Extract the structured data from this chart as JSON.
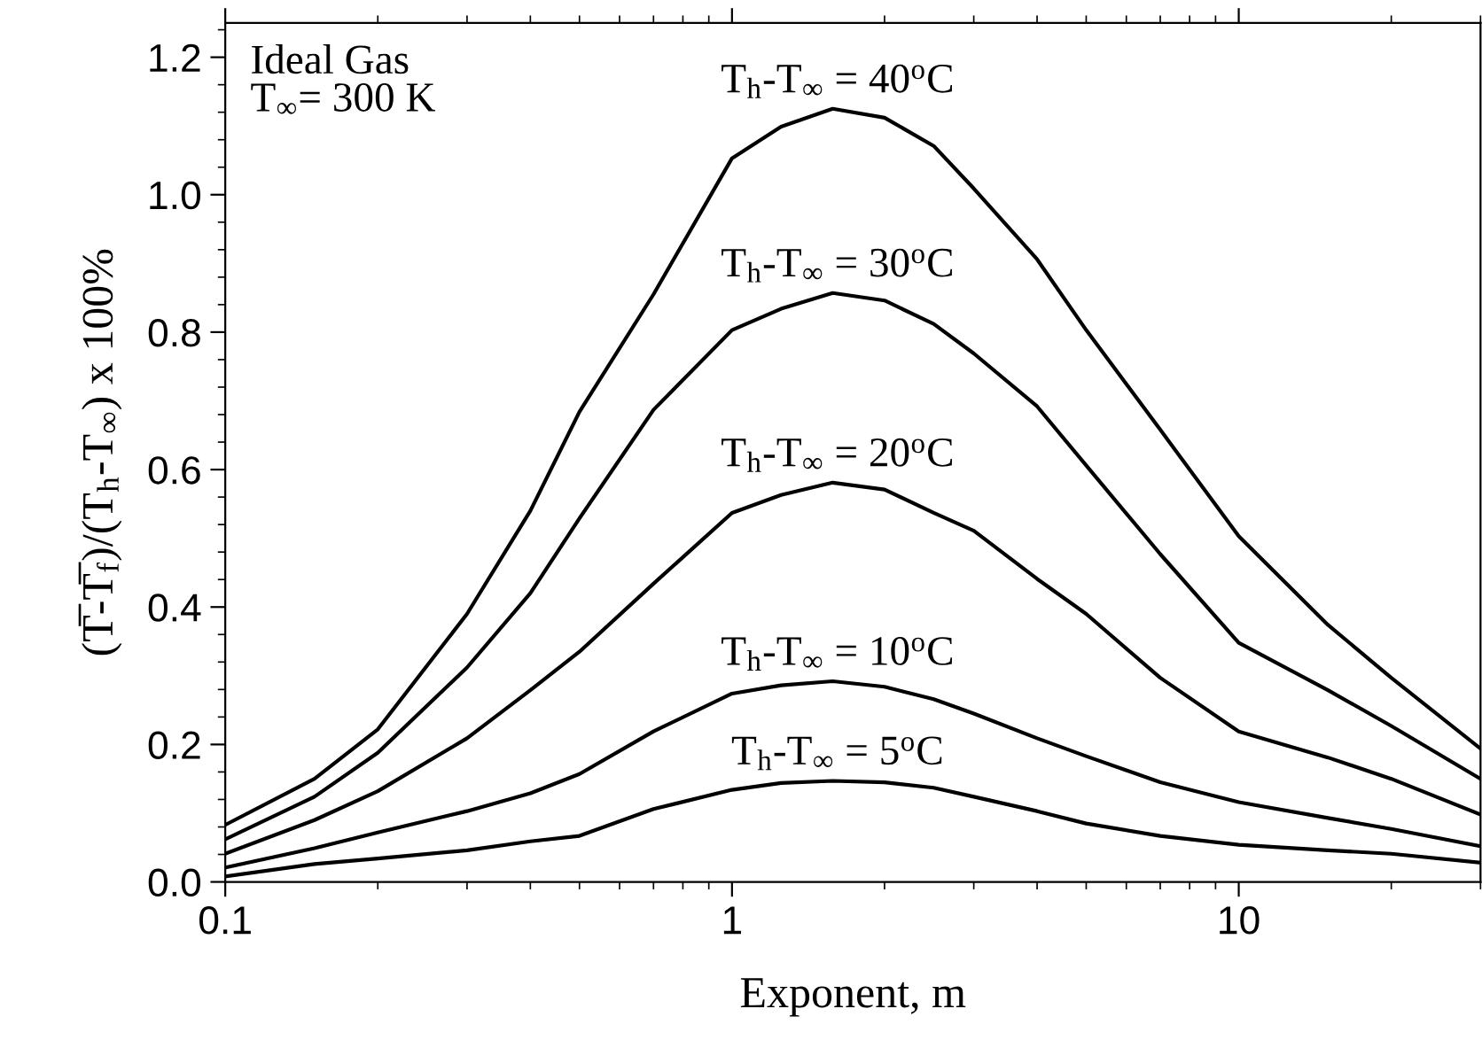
{
  "chart_data": {
    "type": "line",
    "xlabel": "Exponent, m",
    "ylabel": "(T̅-T̅$_{f}$)/(T$_{h}$-T$_{∞}$) x 100%",
    "x": [
      0.1,
      0.15,
      0.2,
      0.3,
      0.4,
      0.5,
      0.7,
      1,
      1.25,
      1.58,
      2,
      2.5,
      3,
      4,
      5,
      7,
      10,
      15,
      20,
      30
    ],
    "series": [
      {
        "name": "T$_{h}$-T$_{∞}$ = 40$^{o}$C",
        "color": "#000000",
        "values": [
          0.083,
          0.15,
          0.222,
          0.39,
          0.54,
          0.684,
          0.855,
          1.053,
          1.099,
          1.125,
          1.112,
          1.071,
          1.009,
          0.906,
          0.803,
          0.658,
          0.503,
          0.374,
          0.297,
          0.194
        ]
      },
      {
        "name": "T$_{h}$-T$_{∞}$ = 30$^{o}$C",
        "color": "#000000",
        "values": [
          0.062,
          0.124,
          0.188,
          0.312,
          0.42,
          0.529,
          0.687,
          0.803,
          0.834,
          0.857,
          0.846,
          0.812,
          0.769,
          0.692,
          0.606,
          0.477,
          0.348,
          0.279,
          0.227,
          0.15
        ]
      },
      {
        "name": "T$_{h}$-T$_{∞}$ = 20$^{o}$C",
        "color": "#000000",
        "values": [
          0.041,
          0.09,
          0.132,
          0.209,
          0.279,
          0.335,
          0.434,
          0.537,
          0.563,
          0.581,
          0.571,
          0.537,
          0.511,
          0.441,
          0.39,
          0.297,
          0.219,
          0.181,
          0.15,
          0.098
        ]
      },
      {
        "name": "T$_{h}$-T$_{∞}$ = 10$^{o}$C",
        "color": "#000000",
        "values": [
          0.021,
          0.049,
          0.072,
          0.103,
          0.129,
          0.157,
          0.219,
          0.274,
          0.286,
          0.292,
          0.284,
          0.266,
          0.245,
          0.209,
          0.183,
          0.145,
          0.116,
          0.093,
          0.077,
          0.052
        ]
      },
      {
        "name": "T$_{h}$-T$_{∞}$ = 5$^{o}$C",
        "color": "#000000",
        "values": [
          0.008,
          0.026,
          0.034,
          0.046,
          0.059,
          0.067,
          0.106,
          0.134,
          0.144,
          0.147,
          0.145,
          0.137,
          0.124,
          0.103,
          0.085,
          0.067,
          0.054,
          0.046,
          0.041,
          0.028
        ]
      }
    ],
    "annotations": [
      "Ideal Gas\nT$_{∞}$= 300 K"
    ],
    "log": "x",
    "xlim": [
      0.1,
      30
    ],
    "xticks": [
      0.1,
      1,
      10
    ],
    "ylim": [
      0,
      1.25
    ],
    "yticks": [
      {
        "value": 0,
        "label": "0.0"
      },
      0.2,
      0.4,
      0.6,
      0.8,
      {
        "value": 1.0,
        "label": "1.0"
      },
      1.2
    ],
    "grid": false,
    "marker": "none",
    "line_style": "solid"
  }
}
